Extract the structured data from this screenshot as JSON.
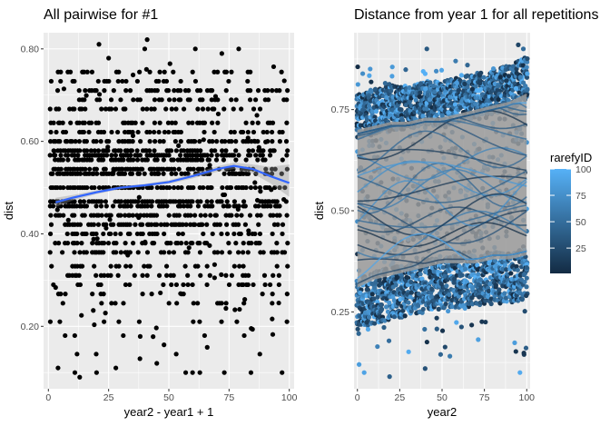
{
  "chart_data": [
    {
      "type": "scatter",
      "title": "All pairwise for #1",
      "xlabel": "year2 - year1 + 1",
      "ylabel": "dist",
      "xlim": [
        -2,
        102
      ],
      "ylim": [
        0.065,
        0.835
      ],
      "xticks": [
        0,
        25,
        50,
        75,
        100
      ],
      "yticks": [
        0.2,
        0.4,
        0.6,
        0.8
      ],
      "grid": true,
      "point_color": "#000000",
      "dist_levels": [
        0.1,
        0.14,
        0.18,
        0.21,
        0.25,
        0.27,
        0.29,
        0.31,
        0.33,
        0.36,
        0.38,
        0.4,
        0.42,
        0.44,
        0.46,
        0.47,
        0.5,
        0.53,
        0.54,
        0.56,
        0.57,
        0.58,
        0.6,
        0.62,
        0.64,
        0.67,
        0.69,
        0.71,
        0.73,
        0.75
      ],
      "outliers": [
        {
          "x": 4,
          "y": 0.11
        },
        {
          "x": 11,
          "y": 0.1
        },
        {
          "x": 13,
          "y": 0.09
        },
        {
          "x": 20,
          "y": 0.1
        },
        {
          "x": 28,
          "y": 0.11
        },
        {
          "x": 38,
          "y": 0.13
        },
        {
          "x": 45,
          "y": 0.12
        },
        {
          "x": 48,
          "y": 0.16
        },
        {
          "x": 57,
          "y": 0.1
        },
        {
          "x": 97,
          "y": 0.1
        },
        {
          "x": 21,
          "y": 0.81
        },
        {
          "x": 41,
          "y": 0.82
        },
        {
          "x": 40,
          "y": 0.8
        },
        {
          "x": 61,
          "y": 0.8
        },
        {
          "x": 79,
          "y": 0.8
        },
        {
          "x": 25,
          "y": 0.78
        },
        {
          "x": 72,
          "y": 0.79
        }
      ],
      "smooth": {
        "color": "#3366ff",
        "x": [
          3,
          10,
          20,
          30,
          40,
          50,
          60,
          70,
          77,
          85,
          92,
          100
        ],
        "y": [
          0.468,
          0.478,
          0.49,
          0.5,
          0.505,
          0.512,
          0.525,
          0.54,
          0.547,
          0.54,
          0.525,
          0.51
        ],
        "se_upper": [
          0.478,
          0.484,
          0.494,
          0.503,
          0.508,
          0.516,
          0.53,
          0.546,
          0.554,
          0.55,
          0.545,
          0.55
        ],
        "se_lower": [
          0.458,
          0.472,
          0.486,
          0.497,
          0.502,
          0.508,
          0.52,
          0.534,
          0.54,
          0.53,
          0.51,
          0.48
        ]
      }
    },
    {
      "type": "scatter",
      "title": "Distance from year 1 for all repetitions",
      "xlabel": "year2",
      "ylabel": "dist",
      "xlim": [
        -2,
        102
      ],
      "ylim": [
        0.06,
        0.94
      ],
      "xticks": [
        0,
        25,
        50,
        75,
        100
      ],
      "yticks": [
        0.25,
        0.5,
        0.75
      ],
      "grid": true,
      "band": {
        "color": "#999999",
        "x": [
          0,
          10,
          20,
          30,
          40,
          50,
          60,
          70,
          80,
          90,
          100
        ],
        "upper": [
          0.7,
          0.71,
          0.72,
          0.72,
          0.73,
          0.73,
          0.74,
          0.75,
          0.76,
          0.77,
          0.79
        ],
        "lower": [
          0.31,
          0.33,
          0.34,
          0.35,
          0.36,
          0.37,
          0.37,
          0.37,
          0.38,
          0.38,
          0.39
        ]
      },
      "color_gradient": {
        "low": "#132b43",
        "high": "#56b1f7"
      },
      "legend": {
        "title": "rarefyID",
        "ticks": [
          25,
          50,
          75,
          100
        ],
        "range": [
          1,
          100
        ],
        "placement": "right"
      },
      "outliers": [
        {
          "x": 1,
          "y": 0.12,
          "c": 85
        },
        {
          "x": 4,
          "y": 0.1,
          "c": 90
        },
        {
          "x": 19,
          "y": 0.09,
          "c": 40
        },
        {
          "x": 40,
          "y": 0.11,
          "c": 30
        },
        {
          "x": 96,
          "y": 0.1,
          "c": 95
        },
        {
          "x": 41,
          "y": 0.9,
          "c": 35
        },
        {
          "x": 95,
          "y": 0.91,
          "c": 20
        },
        {
          "x": 98,
          "y": 0.9,
          "c": 50
        },
        {
          "x": 58,
          "y": 0.87,
          "c": 60
        },
        {
          "x": 65,
          "y": 0.86,
          "c": 45
        }
      ]
    }
  ]
}
